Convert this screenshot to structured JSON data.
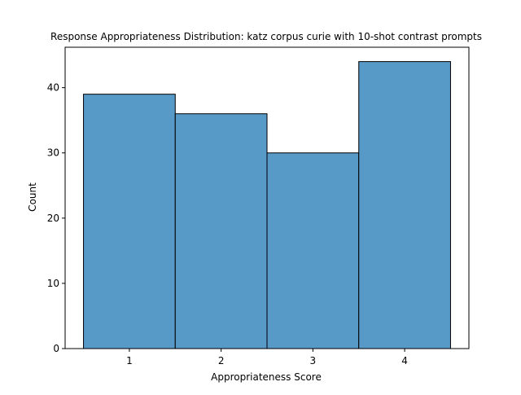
{
  "chart_data": {
    "type": "bar",
    "title": "Response Appropriateness Distribution: katz corpus curie with 10-shot contrast prompts",
    "xlabel": "Appropriateness Score",
    "ylabel": "Count",
    "categories": [
      "1",
      "2",
      "3",
      "4"
    ],
    "values": [
      39,
      36,
      30,
      44
    ],
    "ylim": [
      0,
      46.2
    ],
    "yticks": [
      0,
      10,
      20,
      30,
      40
    ],
    "xlim": [
      0.3,
      4.7
    ],
    "grid": false,
    "legend": "none",
    "bar_color": "#5799c7",
    "edge_color": "#000000"
  }
}
